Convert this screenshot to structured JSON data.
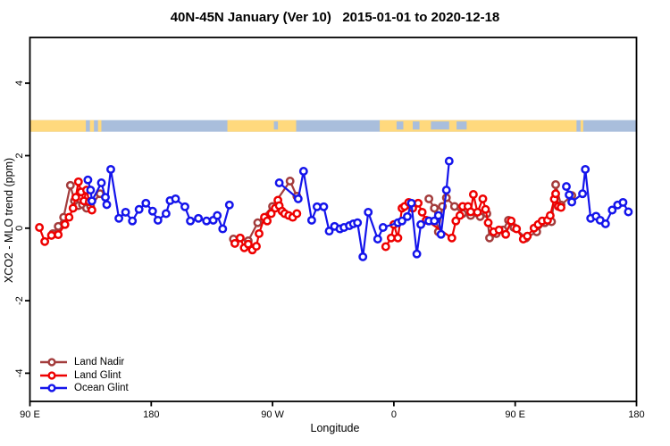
{
  "chart_data": {
    "type": "line",
    "title": "40N-45N January (Ver 10)   2015-01-01 to 2020-12-18",
    "xlabel": "Longitude",
    "ylabel": "XCO2 - MLO trend (ppm)",
    "x_axis": {
      "range": [
        -270,
        180
      ],
      "ticks": [
        {
          "value": -270,
          "label": "90 E"
        },
        {
          "value": -180,
          "label": "180"
        },
        {
          "value": -90,
          "label": "90 W"
        },
        {
          "value": 0,
          "label": "0"
        },
        {
          "value": 90,
          "label": "90 E"
        },
        {
          "value": 180,
          "label": "180"
        }
      ]
    },
    "y_axis": {
      "range": [
        -4.8,
        5.3
      ],
      "ticks": [
        {
          "value": 4,
          "label": "4"
        },
        {
          "value": 2,
          "label": "2"
        },
        {
          "value": 0,
          "label": "0"
        },
        {
          "value": -2,
          "label": "-2"
        },
        {
          "value": -4,
          "label": "-4"
        }
      ]
    },
    "map_band": {
      "description": "land/ocean strip for 40N-45N latitude band",
      "y_center_value": 2.82,
      "ocean_color": "#A9BEDC",
      "land_color": "#FFD97D",
      "land_segments": [
        [
          -270,
          -228.5
        ],
        [
          -225.5,
          -222.5
        ],
        [
          -219.5,
          -217
        ],
        [
          -123.5,
          -72.5
        ],
        [
          -10.5,
          135.5
        ],
        [
          138.5,
          140.5
        ]
      ],
      "ocean_patches": [
        [
          2,
          7
        ],
        [
          14,
          19
        ],
        [
          27.5,
          41
        ],
        [
          46.5,
          54
        ],
        [
          -89,
          -86
        ]
      ]
    },
    "legend_position": "bottom-left",
    "grid": false,
    "series": [
      {
        "name": "Land Nadir",
        "color": "#A33C3C",
        "segments": [
          [
            [
              -253,
              -0.15
            ],
            [
              -249,
              0.05
            ],
            [
              -245,
              0.3
            ],
            [
              -240,
              1.18
            ],
            [
              -237,
              0.75
            ],
            [
              -234,
              0.62
            ],
            [
              -231,
              0.65
            ],
            [
              -228,
              0.55
            ],
            [
              -225,
              0.6
            ],
            [
              -218,
              0.95
            ]
          ],
          [
            [
              -119,
              -0.3
            ],
            [
              -108,
              -0.35
            ],
            [
              -101,
              0.15
            ],
            [
              -90,
              0.6
            ],
            [
              -77,
              1.3
            ],
            [
              -72,
              0.88
            ]
          ],
          [
            [
              26,
              0.81
            ],
            [
              30,
              0.55
            ],
            [
              33,
              -0.1
            ],
            [
              36,
              0.6
            ],
            [
              39,
              0.84
            ],
            [
              45,
              0.6
            ],
            [
              51,
              0.4
            ],
            [
              57,
              0.35
            ],
            [
              64,
              0.32
            ],
            [
              69,
              0.4
            ],
            [
              71,
              -0.27
            ],
            [
              76,
              -0.15
            ],
            [
              81,
              -0.05
            ],
            [
              85,
              0.22
            ],
            [
              89,
              0.02
            ],
            [
              98,
              -0.27
            ],
            [
              106,
              -0.1
            ],
            [
              112,
              0.15
            ],
            [
              117,
              0.18
            ],
            [
              120,
              1.2
            ],
            [
              124,
              0.64
            ],
            [
              132,
              0.9
            ]
          ]
        ]
      },
      {
        "name": "Land Glint",
        "color": "#EE0000",
        "segments": [
          [
            [
              -263,
              0.02
            ],
            [
              -259,
              -0.37
            ],
            [
              -254,
              -0.2
            ],
            [
              -249,
              -0.18
            ],
            [
              -244,
              0.1
            ],
            [
              -241,
              0.3
            ],
            [
              -238,
              0.55
            ],
            [
              -236,
              0.85
            ],
            [
              -234,
              1.28
            ],
            [
              -232,
              1.0
            ],
            [
              -230,
              0.75
            ],
            [
              -228,
              1.05
            ],
            [
              -226,
              0.73
            ],
            [
              -224,
              0.5
            ]
          ],
          [
            [
              -118,
              -0.42
            ],
            [
              -114,
              -0.27
            ],
            [
              -111,
              -0.54
            ],
            [
              -108,
              -0.44
            ],
            [
              -105,
              -0.6
            ],
            [
              -102,
              -0.5
            ],
            [
              -100,
              -0.15
            ],
            [
              -96,
              0.3
            ],
            [
              -94,
              0.2
            ],
            [
              -91,
              0.4
            ],
            [
              -88,
              0.55
            ],
            [
              -86,
              0.77
            ],
            [
              -85,
              0.62
            ],
            [
              -83,
              0.47
            ],
            [
              -81,
              0.4
            ],
            [
              -78,
              0.35
            ],
            [
              -75,
              0.3
            ],
            [
              -72,
              0.4
            ]
          ],
          [
            [
              -6,
              -0.51
            ],
            [
              -2,
              -0.27
            ],
            [
              0,
              0.1
            ],
            [
              3,
              -0.27
            ],
            [
              6,
              0.55
            ],
            [
              8,
              0.6
            ],
            [
              11,
              0.71
            ],
            [
              14,
              0.55
            ],
            [
              18,
              0.69
            ],
            [
              21,
              0.44
            ],
            [
              24,
              0.22
            ],
            [
              43,
              -0.27
            ],
            [
              46,
              0.2
            ],
            [
              49,
              0.35
            ],
            [
              51,
              0.6
            ],
            [
              55,
              0.6
            ],
            [
              57,
              0.45
            ],
            [
              59,
              0.93
            ],
            [
              62,
              0.44
            ],
            [
              66,
              0.81
            ],
            [
              68,
              0.52
            ],
            [
              70,
              0.15
            ],
            [
              74,
              -0.1
            ],
            [
              78,
              -0.05
            ],
            [
              83,
              -0.17
            ],
            [
              87,
              0.2
            ],
            [
              91,
              -0.02
            ],
            [
              96,
              -0.3
            ],
            [
              99,
              -0.22
            ],
            [
              104,
              0.0
            ],
            [
              107,
              0.1
            ],
            [
              110,
              0.2
            ],
            [
              114,
              0.22
            ],
            [
              116,
              0.35
            ],
            [
              119,
              0.8
            ],
            [
              120,
              0.95
            ],
            [
              122,
              0.6
            ],
            [
              124,
              0.57
            ]
          ]
        ]
      },
      {
        "name": "Ocean Glint",
        "color": "#1414EB",
        "segments": [
          [
            [
              -227,
              1.33
            ],
            [
              -225,
              1.05
            ],
            [
              -224,
              0.75
            ],
            [
              -217,
              1.25
            ],
            [
              -214,
              0.85
            ],
            [
              -213,
              0.65
            ],
            [
              -210,
              1.62
            ],
            [
              -204,
              0.27
            ],
            [
              -199,
              0.44
            ],
            [
              -194,
              0.2
            ],
            [
              -189,
              0.52
            ],
            [
              -184,
              0.69
            ],
            [
              -179,
              0.47
            ],
            [
              -175,
              0.22
            ],
            [
              -169,
              0.4
            ],
            [
              -166,
              0.76
            ],
            [
              -162,
              0.81
            ],
            [
              -155,
              0.59
            ],
            [
              -151,
              0.2
            ],
            [
              -145,
              0.27
            ],
            [
              -139,
              0.2
            ],
            [
              -134,
              0.22
            ],
            [
              -131,
              0.35
            ],
            [
              -127,
              -0.02
            ],
            [
              -122,
              0.64
            ]
          ],
          [
            [
              -85,
              1.25
            ],
            [
              -71,
              0.81
            ],
            [
              -67,
              1.57
            ],
            [
              -61,
              0.22
            ],
            [
              -57,
              0.59
            ],
            [
              -52,
              0.59
            ],
            [
              -48,
              -0.08
            ],
            [
              -44,
              0.05
            ],
            [
              -40,
              -0.02
            ],
            [
              -37,
              0.02
            ],
            [
              -33,
              0.07
            ],
            [
              -30,
              0.12
            ],
            [
              -27,
              0.15
            ],
            [
              -23,
              -0.79
            ],
            [
              -19,
              0.44
            ],
            [
              -12,
              -0.3
            ],
            [
              -8,
              0.02
            ],
            [
              3,
              0.15
            ],
            [
              6,
              0.2
            ],
            [
              10,
              0.32
            ],
            [
              13,
              0.69
            ],
            [
              17,
              -0.71
            ],
            [
              20,
              0.1
            ],
            [
              26,
              0.2
            ],
            [
              30,
              0.2
            ],
            [
              33,
              0.35
            ],
            [
              35,
              -0.17
            ],
            [
              39,
              1.05
            ],
            [
              41,
              1.85
            ]
          ],
          [
            [
              128,
              1.15
            ],
            [
              130,
              0.92
            ],
            [
              132,
              0.72
            ],
            [
              140,
              0.95
            ],
            [
              142,
              1.62
            ],
            [
              146,
              0.27
            ],
            [
              150,
              0.33
            ],
            [
              153,
              0.22
            ],
            [
              157,
              0.12
            ],
            [
              162,
              0.5
            ],
            [
              166,
              0.64
            ],
            [
              170,
              0.71
            ],
            [
              174,
              0.45
            ]
          ]
        ]
      }
    ]
  }
}
